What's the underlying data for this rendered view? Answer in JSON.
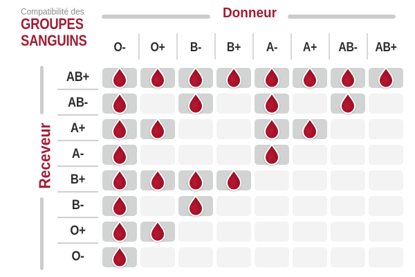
{
  "title": {
    "eyebrow": "Compatibilité des",
    "line1": "GROUPES",
    "line2": "SANGUINS"
  },
  "axes": {
    "donor_label": "Donneur",
    "receiver_label": "Receveur"
  },
  "colors": {
    "accent_red": "#a31c33",
    "drop_red": "#a31127",
    "cell_filled": "#d2d3d3",
    "cell_empty": "#f3f3f3",
    "axis_bar_gray": "#cdcdcd",
    "eyebrow_gray": "#8d8d8d",
    "label_dark": "#2d2d2d"
  },
  "icons": {
    "compatible": "blood-drop-icon"
  },
  "chart_data": {
    "type": "heatmap",
    "title": "Compatibilité des GROUPES SANGUINS",
    "x_axis_title": "Donneur",
    "y_axis_title": "Receveur",
    "columns": [
      "O-",
      "O+",
      "B-",
      "B+",
      "A-",
      "A+",
      "AB-",
      "AB+"
    ],
    "rows": [
      "AB+",
      "AB-",
      "A+",
      "A-",
      "B+",
      "B-",
      "O+",
      "O-"
    ],
    "matrix": [
      [
        1,
        1,
        1,
        1,
        1,
        1,
        1,
        1
      ],
      [
        1,
        0,
        1,
        0,
        1,
        0,
        1,
        0
      ],
      [
        1,
        1,
        0,
        0,
        1,
        1,
        0,
        0
      ],
      [
        1,
        0,
        0,
        0,
        1,
        0,
        0,
        0
      ],
      [
        1,
        1,
        1,
        1,
        0,
        0,
        0,
        0
      ],
      [
        1,
        0,
        1,
        0,
        0,
        0,
        0,
        0
      ],
      [
        1,
        1,
        0,
        0,
        0,
        0,
        0,
        0
      ],
      [
        1,
        0,
        0,
        0,
        0,
        0,
        0,
        0
      ]
    ],
    "compatible_donors_by_receiver": {
      "AB+": [
        "O-",
        "O+",
        "B-",
        "B+",
        "A-",
        "A+",
        "AB-",
        "AB+"
      ],
      "AB-": [
        "O-",
        "B-",
        "A-",
        "AB-"
      ],
      "A+": [
        "O-",
        "O+",
        "A-",
        "A+"
      ],
      "A-": [
        "O-",
        "A-"
      ],
      "B+": [
        "O-",
        "O+",
        "B-",
        "B+"
      ],
      "B-": [
        "O-",
        "B-"
      ],
      "O+": [
        "O-",
        "O+"
      ],
      "O-": [
        "O-"
      ]
    },
    "cell_marker": "blood-drop"
  }
}
